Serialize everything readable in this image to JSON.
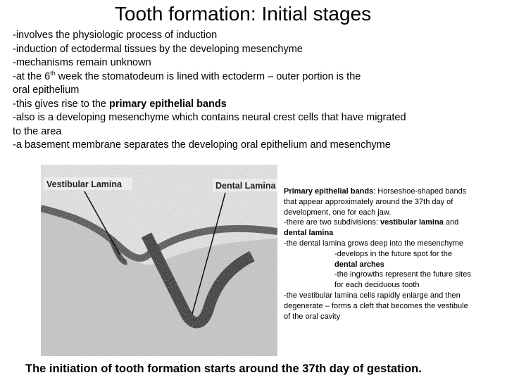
{
  "title": "Tooth formation: Initial stages",
  "intro": {
    "lines": [
      {
        "segments": [
          {
            "text": "-involves the physiologic process of induction"
          }
        ]
      },
      {
        "segments": [
          {
            "text": "-induction of ectodermal tissues by the developing mesenchyme"
          }
        ]
      },
      {
        "segments": [
          {
            "text": "-mechanisms remain unknown"
          }
        ]
      },
      {
        "segments": [
          {
            "text": "-at the 6"
          },
          {
            "text": "th",
            "style": "sup"
          },
          {
            "text": " week the stomatodeum is lined with ectoderm – outer portion is the"
          }
        ]
      },
      {
        "segments": [
          {
            "text": "oral epithelium"
          }
        ]
      },
      {
        "segments": [
          {
            "text": "-this gives rise to the "
          },
          {
            "text": "primary epithelial bands",
            "style": "bold"
          }
        ]
      },
      {
        "segments": [
          {
            "text": "-also is a developing mesenchyme which contains neural crest cells that have migrated"
          }
        ]
      },
      {
        "segments": [
          {
            "text": "to the area"
          }
        ]
      },
      {
        "segments": [
          {
            "text": "-a basement membrane separates the developing oral epithelium and mesenchyme"
          }
        ]
      }
    ]
  },
  "figure": {
    "labels": [
      "Vestibular Lamina",
      "Dental Lamina"
    ]
  },
  "notes": {
    "lines": [
      {
        "segments": [
          {
            "text": "Primary epithelial bands",
            "style": "bold"
          },
          {
            "text": ": Horseshoe-shaped bands"
          }
        ]
      },
      {
        "segments": [
          {
            "text": "that appear approximately around the 37th day of"
          }
        ]
      },
      {
        "segments": [
          {
            "text": "development, one for each jaw."
          }
        ]
      },
      {
        "segments": [
          {
            "text": "-there are two subdivisions: "
          },
          {
            "text": "vestibular lamina",
            "style": "bold"
          },
          {
            "text": " and"
          }
        ]
      },
      {
        "segments": [
          {
            "text": "dental lamina",
            "style": "bold"
          }
        ]
      },
      {
        "segments": [
          {
            "text": "-the dental lamina grows deep into the mesenchyme"
          }
        ]
      },
      {
        "indent": true,
        "segments": [
          {
            "text": "-develops in the future spot for the"
          }
        ]
      },
      {
        "indent": true,
        "segments": [
          {
            "text": "dental arches",
            "style": "bold"
          }
        ]
      },
      {
        "indent": true,
        "segments": [
          {
            "text": "-the ingrowths represent the future sites"
          }
        ]
      },
      {
        "indent": true,
        "segments": [
          {
            "text": "for each deciduous tooth"
          }
        ]
      },
      {
        "segments": [
          {
            "text": "-the vestibular lamina cells rapidly enlarge and then"
          }
        ]
      },
      {
        "segments": [
          {
            "text": "degenerate – forms a cleft that becomes the vestibule"
          }
        ]
      },
      {
        "segments": [
          {
            "text": "of the oral cavity"
          }
        ]
      }
    ]
  },
  "caption": "The initiation of tooth formation starts around the 37th day of gestation."
}
